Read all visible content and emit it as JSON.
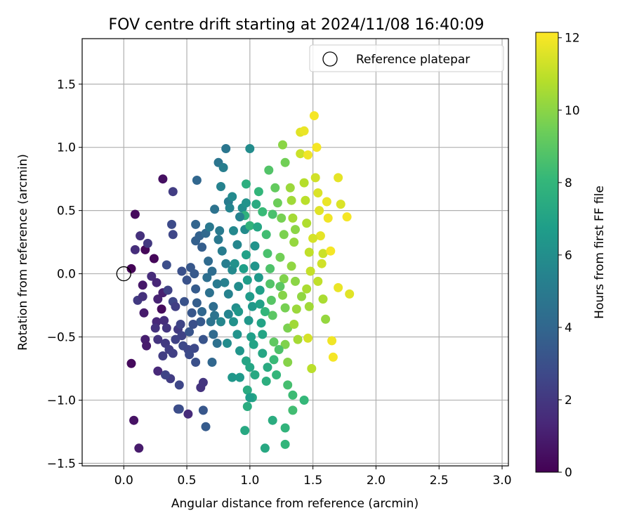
{
  "chart_data": {
    "type": "scatter",
    "title": "FOV centre drift starting at 2024/11/08 16:40:09",
    "xlabel": "Angular distance from reference (arcmin)",
    "ylabel": "Rotation from reference (arcmin)",
    "xlim": [
      -0.33,
      3.05
    ],
    "ylim": [
      -1.52,
      1.86
    ],
    "xticks": [
      0.0,
      0.5,
      1.0,
      1.5,
      2.0,
      2.5,
      3.0
    ],
    "xtick_labels": [
      "0.0",
      "0.5",
      "1.0",
      "1.5",
      "2.0",
      "2.5",
      "3.0"
    ],
    "yticks": [
      -1.5,
      -1.0,
      -0.5,
      0.0,
      0.5,
      1.0,
      1.5
    ],
    "ytick_labels": [
      "−1.5",
      "−1.0",
      "−0.5",
      "0.0",
      "0.5",
      "1.0",
      "1.5"
    ],
    "grid": true,
    "legend": {
      "placement": "top-right",
      "entries": [
        "Reference platepar"
      ]
    },
    "reference_point": {
      "x": 0.0,
      "y": 0.0,
      "label": "Reference platepar"
    },
    "colorbar": {
      "label": "Hours from first FF file",
      "min": 0,
      "max": 12.15,
      "ticks": [
        0,
        2,
        4,
        6,
        8,
        10,
        12
      ],
      "tick_labels": [
        "0",
        "2",
        "4",
        "6",
        "8",
        "10",
        "12"
      ],
      "colormap": "viridis",
      "colors": [
        "#440154",
        "#482878",
        "#3e4989",
        "#31688e",
        "#26828e",
        "#1f9e89",
        "#35b779",
        "#6ece58",
        "#b5de2b",
        "#fde725"
      ]
    },
    "points": [
      [
        0.06,
        0.04,
        0.1
      ],
      [
        0.09,
        0.47,
        0.3
      ],
      [
        0.06,
        -0.71,
        0.3
      ],
      [
        0.08,
        -1.16,
        0.6
      ],
      [
        0.12,
        -1.38,
        0.9
      ],
      [
        0.17,
        0.19,
        0.2
      ],
      [
        0.24,
        0.12,
        0.2
      ],
      [
        0.31,
        0.75,
        0.5
      ],
      [
        0.3,
        -0.28,
        0.3
      ],
      [
        0.15,
        -0.09,
        0.8
      ],
      [
        0.16,
        -0.31,
        0.9
      ],
      [
        0.17,
        -0.52,
        1.0
      ],
      [
        0.18,
        -0.57,
        0.9
      ],
      [
        0.09,
        0.19,
        1.6
      ],
      [
        0.13,
        0.3,
        1.7
      ],
      [
        0.19,
        0.24,
        2.0
      ],
      [
        0.11,
        -0.21,
        2.1
      ],
      [
        0.15,
        -0.18,
        1.7
      ],
      [
        0.22,
        -0.02,
        1.5
      ],
      [
        0.26,
        -0.07,
        1.3
      ],
      [
        0.27,
        -0.2,
        1.2
      ],
      [
        0.31,
        -0.15,
        1.1
      ],
      [
        0.26,
        -0.38,
        1.4
      ],
      [
        0.25,
        -0.43,
        1.8
      ],
      [
        0.32,
        -0.37,
        1.6
      ],
      [
        0.34,
        -0.43,
        1.9
      ],
      [
        0.27,
        -0.52,
        1.9
      ],
      [
        0.33,
        -0.55,
        2.1
      ],
      [
        0.36,
        -0.6,
        2.2
      ],
      [
        0.41,
        -0.52,
        2.4
      ],
      [
        0.39,
        -0.63,
        2.3
      ],
      [
        0.27,
        -0.77,
        1.4
      ],
      [
        0.31,
        -0.65,
        2.2
      ],
      [
        0.37,
        -0.83,
        2.2
      ],
      [
        0.33,
        -0.8,
        2.5
      ],
      [
        0.44,
        -0.88,
        2.6
      ],
      [
        0.43,
        -1.07,
        2.8
      ],
      [
        0.44,
        -1.07,
        2.9
      ],
      [
        0.51,
        -1.11,
        1.5
      ],
      [
        0.39,
        0.65,
        2.2
      ],
      [
        0.34,
        0.07,
        2.9
      ],
      [
        0.38,
        0.39,
        2.8
      ],
      [
        0.39,
        0.31,
        2.6
      ],
      [
        0.35,
        -0.13,
        2.4
      ],
      [
        0.39,
        -0.22,
        2.6
      ],
      [
        0.41,
        -0.26,
        2.3
      ],
      [
        0.43,
        -0.44,
        2.1
      ],
      [
        0.45,
        -0.4,
        2.5
      ],
      [
        0.46,
        -0.49,
        2.4
      ],
      [
        0.47,
        -0.57,
        2.7
      ],
      [
        0.51,
        -0.6,
        2.6
      ],
      [
        0.52,
        -0.64,
        2.8
      ],
      [
        0.56,
        -0.59,
        2.7
      ],
      [
        0.57,
        -0.7,
        3.0
      ],
      [
        0.52,
        -0.46,
        3.2
      ],
      [
        0.46,
        0.02,
        3.0
      ],
      [
        0.5,
        -0.05,
        3.1
      ],
      [
        0.53,
        0.05,
        3.3
      ],
      [
        0.56,
        0.0,
        3.4
      ],
      [
        0.57,
        -0.12,
        3.5
      ],
      [
        0.58,
        -0.23,
        3.6
      ],
      [
        0.54,
        -0.31,
        3.3
      ],
      [
        0.61,
        -0.38,
        3.4
      ],
      [
        0.63,
        -0.52,
        3.2
      ],
      [
        0.61,
        -0.9,
        1.8
      ],
      [
        0.63,
        -0.86,
        1.9
      ],
      [
        0.63,
        -1.08,
        3.3
      ],
      [
        0.65,
        -1.21,
        3.5
      ],
      [
        0.57,
        0.26,
        3.7
      ],
      [
        0.6,
        0.3,
        3.8
      ],
      [
        0.62,
        0.21,
        3.6
      ],
      [
        0.57,
        0.39,
        3.9
      ],
      [
        0.58,
        0.74,
        4.0
      ],
      [
        0.65,
        0.32,
        4.1
      ],
      [
        0.67,
        0.1,
        4.2
      ],
      [
        0.7,
        0.02,
        4.3
      ],
      [
        0.66,
        -0.03,
        4.4
      ],
      [
        0.68,
        -0.15,
        4.5
      ],
      [
        0.71,
        -0.26,
        4.3
      ],
      [
        0.72,
        -0.33,
        4.6
      ],
      [
        0.71,
        -0.48,
        4.2
      ],
      [
        0.74,
        -0.55,
        4.5
      ],
      [
        0.7,
        -0.7,
        4.0
      ],
      [
        0.72,
        0.51,
        4.6
      ],
      [
        0.75,
        0.88,
        4.7
      ],
      [
        0.79,
        0.84,
        5.2
      ],
      [
        0.81,
        0.99,
        4.8
      ],
      [
        0.75,
        0.27,
        4.9
      ],
      [
        0.76,
        0.34,
        5.0
      ],
      [
        0.78,
        0.18,
        5.1
      ],
      [
        0.81,
        0.08,
        5.2
      ],
      [
        0.8,
        -0.07,
        5.3
      ],
      [
        0.83,
        -0.16,
        5.4
      ],
      [
        0.83,
        -0.32,
        5.5
      ],
      [
        0.77,
        -0.38,
        5.6
      ],
      [
        0.77,
        0.69,
        5.4
      ],
      [
        0.83,
        0.57,
        5.1
      ],
      [
        0.84,
        0.52,
        5.5
      ],
      [
        0.86,
        0.61,
        5.8
      ],
      [
        0.87,
        0.34,
        5.7
      ],
      [
        0.9,
        0.23,
        5.6
      ],
      [
        0.86,
        0.03,
        5.8
      ],
      [
        0.91,
        -0.1,
        5.9
      ],
      [
        0.89,
        -0.27,
        6.0
      ],
      [
        0.87,
        -0.38,
        6.1
      ],
      [
        0.9,
        -0.48,
        6.2
      ],
      [
        0.92,
        -0.61,
        6.3
      ],
      [
        0.86,
        -0.82,
        6.4
      ],
      [
        0.92,
        -0.82,
        6.5
      ],
      [
        0.94,
        0.52,
        6.0
      ],
      [
        0.97,
        0.56,
        6.2
      ],
      [
        0.96,
        0.35,
        5.9
      ],
      [
        0.97,
        0.15,
        6.9
      ],
      [
        0.95,
        0.04,
        6.8
      ],
      [
        0.98,
        -0.05,
        6.7
      ],
      [
        1.0,
        -0.18,
        6.6
      ],
      [
        1.02,
        -0.26,
        6.5
      ],
      [
        0.99,
        -0.37,
        6.4
      ],
      [
        1.01,
        -0.5,
        6.8
      ],
      [
        1.03,
        -0.56,
        7.0
      ],
      [
        0.97,
        -0.69,
        7.1
      ],
      [
        1.0,
        -0.74,
        7.2
      ],
      [
        1.04,
        -0.8,
        7.3
      ],
      [
        0.98,
        -0.92,
        7.4
      ],
      [
        1.02,
        -0.98,
        7.2
      ],
      [
        0.98,
        -1.05,
        7.5
      ],
      [
        0.96,
        -1.24,
        7.3
      ],
      [
        1.0,
        -0.98,
        6.7
      ],
      [
        0.97,
        0.71,
        7.6
      ],
      [
        1.0,
        0.99,
        5.9
      ],
      [
        0.96,
        0.46,
        7.8
      ],
      [
        1.0,
        0.38,
        7.9
      ],
      [
        1.04,
        0.22,
        6.2
      ],
      [
        1.04,
        0.06,
        6.3
      ],
      [
        1.07,
        -0.03,
        6.5
      ],
      [
        1.08,
        -0.13,
        6.8
      ],
      [
        1.08,
        -0.24,
        6.9
      ],
      [
        1.09,
        -0.39,
        7.0
      ],
      [
        1.1,
        -0.48,
        7.1
      ],
      [
        1.1,
        -0.63,
        7.2
      ],
      [
        1.14,
        -0.74,
        7.4
      ],
      [
        1.13,
        -0.85,
        7.6
      ],
      [
        1.12,
        -1.38,
        7.3
      ],
      [
        1.07,
        0.65,
        8.0
      ],
      [
        1.1,
        0.49,
        8.2
      ],
      [
        1.13,
        0.31,
        8.4
      ],
      [
        1.14,
        0.16,
        8.6
      ],
      [
        1.16,
        0.04,
        8.7
      ],
      [
        1.16,
        -0.08,
        8.8
      ],
      [
        1.17,
        -0.21,
        8.9
      ],
      [
        1.18,
        -0.33,
        9.0
      ],
      [
        1.19,
        -0.54,
        9.1
      ],
      [
        1.19,
        -0.68,
        8.2
      ],
      [
        1.21,
        -0.8,
        8.0
      ],
      [
        1.18,
        -1.16,
        7.5
      ],
      [
        1.15,
        0.82,
        8.8
      ],
      [
        1.2,
        0.68,
        9.2
      ],
      [
        1.22,
        0.56,
        9.4
      ],
      [
        1.25,
        0.44,
        9.6
      ],
      [
        1.27,
        0.31,
        9.7
      ],
      [
        1.24,
        0.13,
        9.5
      ],
      [
        1.27,
        -0.04,
        9.8
      ],
      [
        1.26,
        -0.17,
        9.9
      ],
      [
        1.28,
        -0.27,
        9.6
      ],
      [
        1.3,
        -0.43,
        9.7
      ],
      [
        1.28,
        -0.56,
        9.8
      ],
      [
        1.3,
        -0.7,
        9.9
      ],
      [
        1.3,
        -0.88,
        8.5
      ],
      [
        1.28,
        -1.22,
        7.9
      ],
      [
        1.28,
        -1.35,
        8.0
      ],
      [
        1.26,
        1.02,
        10.0
      ],
      [
        1.28,
        0.88,
        9.5
      ],
      [
        1.32,
        0.68,
        10.3
      ],
      [
        1.33,
        0.58,
        10.4
      ],
      [
        1.34,
        0.44,
        10.5
      ],
      [
        1.35,
        0.25,
        10.2
      ],
      [
        1.33,
        0.06,
        10.1
      ],
      [
        1.36,
        -0.06,
        10.0
      ],
      [
        1.37,
        -0.28,
        10.3
      ],
      [
        1.35,
        -0.4,
        10.4
      ],
      [
        1.38,
        -0.52,
        10.5
      ],
      [
        1.34,
        -0.96,
        8.3
      ],
      [
        1.34,
        -1.08,
        8.4
      ],
      [
        1.4,
        1.12,
        11.6
      ],
      [
        1.43,
        1.13,
        11.8
      ],
      [
        1.4,
        0.95,
        11.2
      ],
      [
        1.43,
        0.72,
        10.8
      ],
      [
        1.44,
        0.58,
        10.9
      ],
      [
        1.45,
        0.4,
        10.7
      ],
      [
        1.47,
        0.17,
        11.0
      ],
      [
        1.48,
        0.02,
        11.1
      ],
      [
        1.45,
        -0.12,
        10.6
      ],
      [
        1.47,
        -0.26,
        10.4
      ],
      [
        1.46,
        -0.51,
        11.4
      ],
      [
        1.49,
        -0.75,
        10.9
      ],
      [
        1.43,
        -1.0,
        8.1
      ],
      [
        1.46,
        0.94,
        11.9
      ],
      [
        1.51,
        1.25,
        12.0
      ],
      [
        1.52,
        0.76,
        11.3
      ],
      [
        1.54,
        0.64,
        11.5
      ],
      [
        1.55,
        0.5,
        11.6
      ],
      [
        1.56,
        0.3,
        11.7
      ],
      [
        1.58,
        0.16,
        11.2
      ],
      [
        1.54,
        -0.06,
        11.0
      ],
      [
        1.58,
        -0.2,
        10.6
      ],
      [
        1.6,
        -0.36,
        10.2
      ],
      [
        1.53,
        1.0,
        12.0
      ],
      [
        1.61,
        0.57,
        11.8
      ],
      [
        1.62,
        0.44,
        11.9
      ],
      [
        1.64,
        0.18,
        12.0
      ],
      [
        1.65,
        -0.53,
        11.9
      ],
      [
        1.66,
        -0.66,
        12.0
      ],
      [
        1.7,
        0.76,
        11.7
      ],
      [
        1.7,
        -0.11,
        11.8
      ],
      [
        1.72,
        0.55,
        11.5
      ],
      [
        1.77,
        0.45,
        12.0
      ],
      [
        1.79,
        -0.16,
        11.6
      ],
      [
        0.92,
        0.45,
        5.4
      ],
      [
        0.69,
        -0.38,
        4.6
      ],
      [
        0.48,
        -0.22,
        3.1
      ],
      [
        0.62,
        -0.3,
        4.0
      ],
      [
        0.68,
        0.37,
        4.9
      ],
      [
        0.74,
        -0.08,
        5.0
      ],
      [
        0.88,
        0.08,
        6.1
      ],
      [
        0.91,
        -0.3,
        6.4
      ],
      [
        1.06,
        0.37,
        7.2
      ],
      [
        1.12,
        -0.3,
        8.0
      ],
      [
        1.24,
        -0.1,
        9.0
      ],
      [
        1.36,
        0.35,
        10.0
      ],
      [
        1.41,
        -0.18,
        10.1
      ],
      [
        1.5,
        0.28,
        11.4
      ],
      [
        1.57,
        0.08,
        11.3
      ],
      [
        1.23,
        -0.6,
        8.7
      ],
      [
        1.18,
        0.47,
        8.6
      ],
      [
        1.05,
        0.55,
        7.4
      ],
      [
        0.82,
        -0.55,
        5.9
      ],
      [
        0.55,
        -0.4,
        3.0
      ]
    ]
  }
}
